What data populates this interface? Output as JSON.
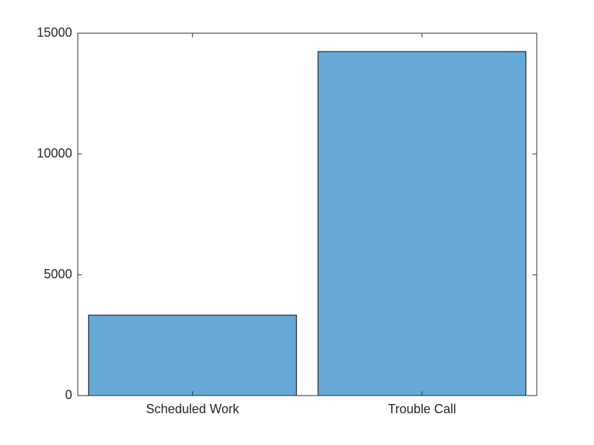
{
  "chart_data": {
    "type": "bar",
    "categories": [
      "Scheduled Work",
      "Trouble Call"
    ],
    "values": [
      3330,
      14240
    ],
    "color": "#66a9d7",
    "ylim": [
      0,
      15000
    ],
    "yticks": [
      0,
      5000,
      10000,
      15000
    ]
  }
}
